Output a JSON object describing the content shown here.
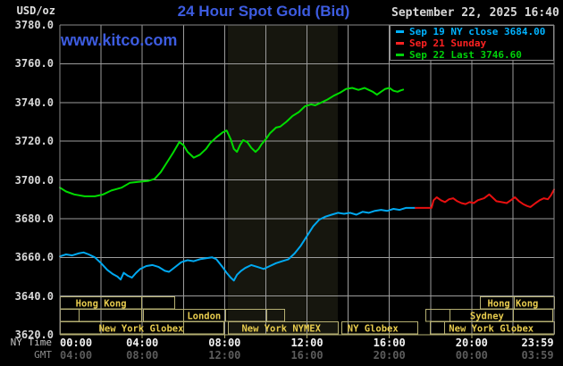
{
  "header": {
    "units_label": "USD/oz",
    "title": "24 Hour Spot Gold (Bid)",
    "datetime": "September 22, 2025 16:40",
    "watermark": "www.kitco.com",
    "legend": [
      {
        "label": "Sep 19 NY close 3684.00",
        "color": "#00b2ff"
      },
      {
        "label": "Sep 21 Sunday",
        "color": "#ff2222"
      },
      {
        "label": "Sep 22 Last 3746.60",
        "color": "#00d20a"
      }
    ]
  },
  "colors": {
    "background": "#000000",
    "brand_blue": "#3d5ce0",
    "grid": "#9c9c9c",
    "plot_border": "#8a8a8a",
    "axis_bottom": "#b5af72",
    "session_border": "#b5af72",
    "session_text": "#e8cc4e",
    "band": "#16160e",
    "legend_box_border": "#878787"
  },
  "axes": {
    "y_labels": [
      "3780.0",
      "3760.0",
      "3740.0",
      "3720.0",
      "3700.0",
      "3680.0",
      "3660.0",
      "3640.0",
      "3620.0"
    ],
    "tick_hours": [
      0,
      4,
      8,
      12,
      16,
      20,
      23.983
    ],
    "x_rows": [
      {
        "label": "NY Time",
        "ticks": [
          "00:00",
          "04:00",
          "08:00",
          "12:00",
          "16:00",
          "20:00",
          "23:59"
        ]
      },
      {
        "label": "GMT",
        "ticks": [
          "04:00",
          "08:00",
          "12:00",
          "16:00",
          "20:00",
          "00:00",
          "03:59"
        ]
      }
    ]
  },
  "chart_data": {
    "type": "line",
    "title": "24 Hour Spot Gold (Bid)",
    "ylabel": "USD/oz",
    "ylim": [
      3620,
      3780
    ],
    "xlim_hours": [
      0,
      24
    ],
    "grid": {
      "x_step_hours": 2,
      "y_step": 20
    },
    "band": {
      "x0": 8.16,
      "x1": 13.5
    },
    "series": [
      {
        "name": "Sep 19 NY close 3684.00",
        "color": "#00a8f0",
        "points": [
          [
            0,
            3660.5
          ],
          [
            0.3,
            3661.5
          ],
          [
            0.6,
            3661
          ],
          [
            0.9,
            3662
          ],
          [
            1.15,
            3662.5
          ],
          [
            1.4,
            3661.5
          ],
          [
            1.7,
            3660
          ],
          [
            2.0,
            3657
          ],
          [
            2.3,
            3653.5
          ],
          [
            2.55,
            3651.5
          ],
          [
            2.8,
            3650
          ],
          [
            2.95,
            3648.5
          ],
          [
            3.1,
            3652
          ],
          [
            3.3,
            3650.5
          ],
          [
            3.5,
            3649.5
          ],
          [
            3.7,
            3652
          ],
          [
            3.9,
            3654
          ],
          [
            4.2,
            3655.5
          ],
          [
            4.5,
            3656
          ],
          [
            4.8,
            3655
          ],
          [
            5.1,
            3653
          ],
          [
            5.3,
            3652.5
          ],
          [
            5.6,
            3655
          ],
          [
            5.9,
            3657.5
          ],
          [
            6.2,
            3658.5
          ],
          [
            6.5,
            3658
          ],
          [
            6.8,
            3659
          ],
          [
            7.1,
            3659.5
          ],
          [
            7.4,
            3660
          ],
          [
            7.6,
            3659
          ],
          [
            7.9,
            3655
          ],
          [
            8.1,
            3652
          ],
          [
            8.3,
            3649.5
          ],
          [
            8.45,
            3648
          ],
          [
            8.6,
            3651
          ],
          [
            8.8,
            3653
          ],
          [
            9.0,
            3654.5
          ],
          [
            9.3,
            3656
          ],
          [
            9.6,
            3655
          ],
          [
            9.9,
            3654
          ],
          [
            10.2,
            3655.5
          ],
          [
            10.5,
            3657
          ],
          [
            10.8,
            3658
          ],
          [
            11.1,
            3659
          ],
          [
            11.4,
            3662
          ],
          [
            11.7,
            3666
          ],
          [
            12.0,
            3671
          ],
          [
            12.3,
            3676
          ],
          [
            12.6,
            3679.5
          ],
          [
            12.9,
            3681
          ],
          [
            13.2,
            3682
          ],
          [
            13.5,
            3683
          ],
          [
            13.8,
            3682.5
          ],
          [
            14.1,
            3683
          ],
          [
            14.4,
            3682
          ],
          [
            14.7,
            3683.5
          ],
          [
            15.0,
            3683
          ],
          [
            15.3,
            3684
          ],
          [
            15.6,
            3684.5
          ],
          [
            15.9,
            3684
          ],
          [
            16.2,
            3685
          ],
          [
            16.5,
            3684.5
          ],
          [
            16.8,
            3685.5
          ],
          [
            17.27,
            3685.5
          ]
        ]
      },
      {
        "name": "Sep 21 Sunday",
        "color": "#e81010",
        "points": [
          [
            17.27,
            3685.5
          ],
          [
            18.05,
            3685.5
          ],
          [
            18.15,
            3689.5
          ],
          [
            18.3,
            3691
          ],
          [
            18.5,
            3689.5
          ],
          [
            18.7,
            3688.5
          ],
          [
            18.9,
            3690
          ],
          [
            19.1,
            3690.5
          ],
          [
            19.3,
            3689
          ],
          [
            19.5,
            3688
          ],
          [
            19.7,
            3687.5
          ],
          [
            19.9,
            3688.5
          ],
          [
            20.1,
            3688
          ],
          [
            20.3,
            3689.5
          ],
          [
            20.6,
            3690.5
          ],
          [
            20.85,
            3692.5
          ],
          [
            21.0,
            3691
          ],
          [
            21.2,
            3689
          ],
          [
            21.45,
            3688.5
          ],
          [
            21.7,
            3688
          ],
          [
            21.9,
            3689.5
          ],
          [
            22.1,
            3691
          ],
          [
            22.3,
            3689
          ],
          [
            22.5,
            3687.5
          ],
          [
            22.7,
            3686.5
          ],
          [
            22.85,
            3686
          ],
          [
            23.1,
            3688
          ],
          [
            23.3,
            3689.5
          ],
          [
            23.5,
            3690.5
          ],
          [
            23.7,
            3690
          ],
          [
            23.85,
            3692
          ],
          [
            24,
            3695
          ]
        ]
      },
      {
        "name": "Sep 22 Last 3746.60",
        "color": "#00dc00",
        "points": [
          [
            0,
            3696
          ],
          [
            0.3,
            3694
          ],
          [
            0.7,
            3692.5
          ],
          [
            1.2,
            3691.5
          ],
          [
            1.7,
            3691.5
          ],
          [
            2.1,
            3692.5
          ],
          [
            2.5,
            3694.5
          ],
          [
            3.0,
            3696
          ],
          [
            3.4,
            3698.5
          ],
          [
            3.8,
            3699
          ],
          [
            4.3,
            3699.5
          ],
          [
            4.6,
            3700.5
          ],
          [
            4.9,
            3704
          ],
          [
            5.2,
            3709
          ],
          [
            5.5,
            3714
          ],
          [
            5.8,
            3719.5
          ],
          [
            6.0,
            3718
          ],
          [
            6.2,
            3714.5
          ],
          [
            6.5,
            3711.5
          ],
          [
            6.8,
            3713
          ],
          [
            7.1,
            3716
          ],
          [
            7.3,
            3719
          ],
          [
            7.6,
            3722
          ],
          [
            7.9,
            3724.5
          ],
          [
            8.1,
            3725.5
          ],
          [
            8.3,
            3721
          ],
          [
            8.45,
            3716
          ],
          [
            8.6,
            3714.5
          ],
          [
            8.75,
            3718
          ],
          [
            8.9,
            3720.5
          ],
          [
            9.1,
            3719.5
          ],
          [
            9.3,
            3716.5
          ],
          [
            9.5,
            3714.5
          ],
          [
            9.65,
            3716
          ],
          [
            9.8,
            3718.5
          ],
          [
            10.0,
            3721
          ],
          [
            10.2,
            3724
          ],
          [
            10.5,
            3727
          ],
          [
            10.7,
            3727.5
          ],
          [
            11.0,
            3730
          ],
          [
            11.3,
            3733
          ],
          [
            11.6,
            3735
          ],
          [
            11.9,
            3738
          ],
          [
            12.2,
            3739
          ],
          [
            12.4,
            3738.5
          ],
          [
            12.7,
            3740
          ],
          [
            13.0,
            3741.5
          ],
          [
            13.3,
            3743.5
          ],
          [
            13.6,
            3745
          ],
          [
            13.9,
            3747
          ],
          [
            14.2,
            3747.5
          ],
          [
            14.5,
            3746.5
          ],
          [
            14.8,
            3747.5
          ],
          [
            15.0,
            3746.5
          ],
          [
            15.2,
            3745.5
          ],
          [
            15.4,
            3744
          ],
          [
            15.6,
            3745.5
          ],
          [
            15.8,
            3747
          ],
          [
            16.0,
            3747.5
          ],
          [
            16.2,
            3746
          ],
          [
            16.4,
            3745.5
          ],
          [
            16.55,
            3746.2
          ],
          [
            16.67,
            3746.6
          ]
        ]
      }
    ],
    "sessions": {
      "rows": [
        {
          "boxes": [
            [
              0,
              3.95
            ],
            [
              3.95,
              5.56
            ],
            [
              20.4,
              22.05
            ],
            [
              22.05,
              24
            ]
          ],
          "labels": [
            {
              "text": "Hong Kong",
              "at": 2.0
            },
            {
              "text": "Hong Kong",
              "at": 22.0
            }
          ]
        },
        {
          "boxes": [
            [
              0,
              0.91
            ],
            [
              0.91,
              3.95
            ],
            [
              4.04,
              5.99
            ],
            [
              5.99,
              8.03
            ],
            [
              8.03,
              10.03
            ],
            [
              10.03,
              10.89
            ],
            [
              17.75,
              18.92
            ],
            [
              18.92,
              22.0
            ],
            [
              22.0,
              23.91
            ]
          ],
          "labels": [
            {
              "text": "London",
              "at": 7.0
            },
            {
              "text": "Sydney",
              "at": 20.74
            }
          ]
        },
        {
          "boxes": [
            [
              0,
              5.99
            ],
            [
              5.99,
              7.94
            ],
            [
              8.16,
              13.5
            ],
            [
              13.67,
              17.36
            ],
            [
              17.97,
              18.66
            ],
            [
              18.66,
              24
            ]
          ],
          "labels": [
            {
              "text": "New York Globex",
              "at": 3.95
            },
            {
              "text": "New York NYMEX",
              "at": 10.75
            },
            {
              "text": "NY Globex",
              "at": 15.2
            },
            {
              "text": "New York Globex",
              "at": 20.95
            }
          ]
        }
      ]
    }
  }
}
